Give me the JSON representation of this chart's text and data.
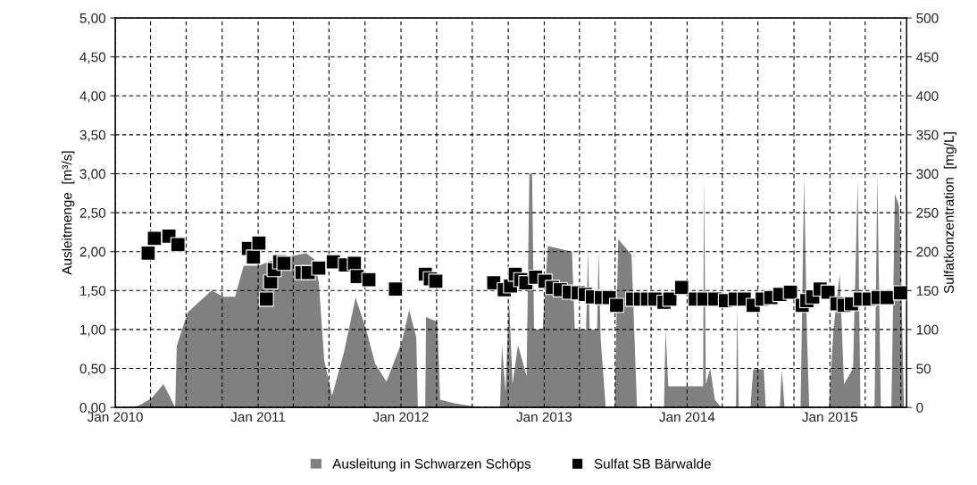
{
  "chart_data": {
    "type": "area",
    "ylabel": "Ausleitmenge  [m³/s]",
    "y2label": "Sulfatkonzentration  [mg/L]",
    "xlim": [
      "2010-01-01",
      "2015-07-16"
    ],
    "xticks": [
      {
        "value": "2010-01-01",
        "label": "Jan 2010"
      },
      {
        "value": "2010-04-01",
        "label": null
      },
      {
        "value": "2010-07-01",
        "label": null
      },
      {
        "value": "2010-10-01",
        "label": null
      },
      {
        "value": "2011-01-01",
        "label": "Jan 2011"
      },
      {
        "value": "2011-04-01",
        "label": null
      },
      {
        "value": "2011-07-01",
        "label": null
      },
      {
        "value": "2011-10-01",
        "label": null
      },
      {
        "value": "2012-01-01",
        "label": "Jan 2012"
      },
      {
        "value": "2012-04-01",
        "label": null
      },
      {
        "value": "2012-07-01",
        "label": null
      },
      {
        "value": "2012-10-01",
        "label": null
      },
      {
        "value": "2013-01-01",
        "label": "Jan 2013"
      },
      {
        "value": "2013-04-01",
        "label": null
      },
      {
        "value": "2013-07-01",
        "label": null
      },
      {
        "value": "2013-10-01",
        "label": null
      },
      {
        "value": "2014-01-01",
        "label": "Jan 2014"
      },
      {
        "value": "2014-04-01",
        "label": null
      },
      {
        "value": "2014-07-01",
        "label": null
      },
      {
        "value": "2014-10-01",
        "label": null
      },
      {
        "value": "2015-01-01",
        "label": "Jan 2015"
      },
      {
        "value": "2015-04-01",
        "label": null
      },
      {
        "value": "2015-07-01",
        "label": null
      }
    ],
    "ylim": [
      0,
      5
    ],
    "yticks": [
      {
        "value": 0,
        "label": "0,00"
      },
      {
        "value": 0.5,
        "label": "0,50"
      },
      {
        "value": 1,
        "label": "1,00"
      },
      {
        "value": 1.5,
        "label": "1,50"
      },
      {
        "value": 2,
        "label": "2,00"
      },
      {
        "value": 2.5,
        "label": "2,50"
      },
      {
        "value": 3,
        "label": "3,00"
      },
      {
        "value": 3.5,
        "label": "3,50"
      },
      {
        "value": 4,
        "label": "4,00"
      },
      {
        "value": 4.5,
        "label": "4,50"
      },
      {
        "value": 5,
        "label": "5,00"
      }
    ],
    "y2lim": [
      0,
      500
    ],
    "y2ticks": [
      0,
      50,
      100,
      150,
      200,
      250,
      300,
      350,
      400,
      450,
      500
    ],
    "grid": true,
    "legend": "bottom",
    "series": [
      {
        "name": "Ausleitung in Schwarzen Schöps",
        "color": "#808080",
        "x": [
          "2010-01-26",
          "2010-03-01",
          "2010-04-04",
          "2010-05-04",
          "2010-06-03",
          "2010-06-07",
          "2010-07-05",
          "2010-09-04",
          "2010-10-04",
          "2010-11-03",
          "2010-11-25",
          "2011-01-03",
          "2011-02-11",
          "2011-05-04",
          "2011-05-25",
          "2011-06-05",
          "2011-06-19",
          "2011-07-09",
          "2011-08-08",
          "2011-09-07",
          "2011-10-04",
          "2011-10-27",
          "2011-11-25",
          "2012-01-03",
          "2012-01-22",
          "2012-02-09",
          "2012-02-13",
          "2012-03-03",
          "2012-03-05",
          "2012-04-03",
          "2012-04-10",
          "2012-05-19",
          "2012-06-27",
          "2012-07-26",
          "2012-09-10",
          "2012-09-15",
          "2012-09-24",
          "2012-10-03",
          "2012-10-12",
          "2012-10-26",
          "2012-11-17",
          "2012-11-24",
          "2012-12-01",
          "2012-12-06",
          "2012-12-28",
          "2013-01-10",
          "2013-03-13",
          "2013-03-20",
          "2013-04-18",
          "2013-04-23",
          "2013-04-27",
          "2013-05-16",
          "2013-05-20",
          "2013-05-25",
          "2013-06-07",
          "2013-06-30",
          "2013-07-09",
          "2013-08-12",
          "2013-08-26",
          "2013-11-03",
          "2013-11-07",
          "2013-11-14",
          "2014-02-11",
          "2014-02-13",
          "2014-02-18",
          "2014-03-01",
          "2014-03-13",
          "2014-03-29",
          "2014-05-06",
          "2014-05-09",
          "2014-05-13",
          "2014-06-12",
          "2014-06-19",
          "2014-07-16",
          "2014-07-21",
          "2014-08-26",
          "2014-08-31",
          "2014-09-07",
          "2014-10-18",
          "2014-10-27",
          "2014-11-03",
          "2014-11-09",
          "2014-12-29",
          "2015-01-10",
          "2015-01-26",
          "2015-02-06",
          "2015-03-01",
          "2015-03-13",
          "2015-03-20",
          "2015-04-25",
          "2015-05-02",
          "2015-05-11",
          "2015-06-07",
          "2015-06-16",
          "2015-06-26",
          "2015-06-30",
          "2015-07-09"
        ],
        "values": [
          0,
          0.02,
          0.12,
          0.3,
          0,
          0.79,
          1.22,
          1.5,
          1.42,
          1.42,
          1.82,
          1.82,
          1.9,
          1.98,
          1.9,
          1.6,
          0.6,
          0.15,
          0.7,
          1.41,
          1.0,
          0.56,
          0.33,
          0.84,
          1.25,
          0.9,
          0,
          0,
          1.16,
          1.1,
          0.1,
          0.05,
          0.02,
          0,
          0,
          0.8,
          0.2,
          1.41,
          0.3,
          0.8,
          0.4,
          3.0,
          3.0,
          1.0,
          1.0,
          2.07,
          2.0,
          1.0,
          1.0,
          2.02,
          1.0,
          1.0,
          2.02,
          0.9,
          0,
          0,
          2.16,
          1.96,
          0,
          0,
          1.0,
          0.27,
          0.27,
          2.96,
          0.3,
          0.5,
          0.1,
          0,
          0,
          1.3,
          0,
          0,
          0.49,
          0.49,
          0,
          0,
          0.49,
          0,
          0,
          2.96,
          1.0,
          0,
          0,
          1.0,
          1.71,
          0.3,
          0.5,
          2.92,
          0,
          0,
          3.0,
          0,
          0,
          2.74,
          2.6,
          2.17,
          0
        ]
      },
      {
        "name": "Sulfat SB Bärwalde",
        "type": "scatter",
        "axis": "y2",
        "color": "#000000",
        "marker": "square",
        "x": [
          "2010-03-26",
          "2010-04-11",
          "2010-05-18",
          "2010-06-10",
          "2010-12-07",
          "2010-12-20",
          "2011-01-03",
          "2011-01-22",
          "2011-02-02",
          "2011-02-11",
          "2011-02-25",
          "2011-03-08",
          "2011-04-23",
          "2011-05-09",
          "2011-06-05",
          "2011-07-12",
          "2011-08-12",
          "2011-09-04",
          "2011-09-11",
          "2011-10-11",
          "2011-12-18",
          "2012-03-03",
          "2012-03-16",
          "2012-03-30",
          "2012-08-25",
          "2012-09-21",
          "2012-10-07",
          "2012-10-19",
          "2012-11-02",
          "2012-11-15",
          "2012-12-10",
          "2013-01-03",
          "2013-01-22",
          "2013-02-11",
          "2013-03-06",
          "2013-03-29",
          "2013-04-16",
          "2013-05-04",
          "2013-05-27",
          "2013-06-16",
          "2013-07-05",
          "2013-08-15",
          "2013-09-04",
          "2013-09-22",
          "2013-10-11",
          "2013-11-03",
          "2013-11-18",
          "2013-12-18",
          "2014-01-22",
          "2014-02-13",
          "2014-03-13",
          "2014-04-09",
          "2014-05-04",
          "2014-05-27",
          "2014-06-19",
          "2014-07-12",
          "2014-08-03",
          "2014-08-26",
          "2014-09-22",
          "2014-10-22",
          "2014-11-03",
          "2014-11-18",
          "2014-12-07",
          "2014-12-27",
          "2015-01-19",
          "2015-02-06",
          "2015-02-25",
          "2015-03-20",
          "2015-04-11",
          "2015-05-04",
          "2015-05-27",
          "2015-06-30"
        ],
        "values": [
          198,
          217,
          220,
          209,
          204,
          193,
          211,
          139,
          161,
          177,
          187,
          185,
          173,
          173,
          179,
          187,
          183,
          185,
          168,
          164,
          152,
          171,
          165,
          162,
          160,
          151,
          156,
          171,
          164,
          160,
          167,
          162,
          154,
          151,
          148,
          147,
          145,
          142,
          141,
          141,
          131,
          139,
          139,
          139,
          139,
          135,
          139,
          154,
          139,
          139,
          139,
          137,
          139,
          139,
          131,
          139,
          141,
          145,
          148,
          131,
          137,
          142,
          152,
          148,
          133,
          131,
          133,
          139,
          139,
          141,
          141,
          147
        ]
      }
    ]
  }
}
